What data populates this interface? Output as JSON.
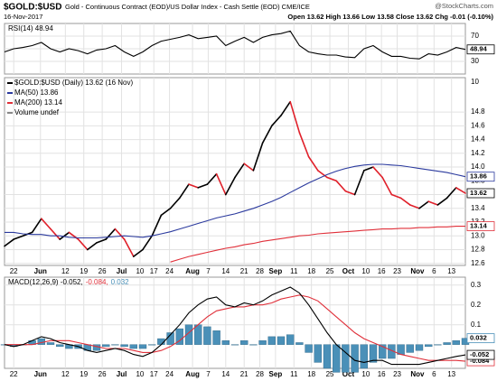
{
  "header": {
    "symbol": "$GOLD:$USD",
    "subtitle": "Gold - Continuous Contract (EOD)/US Dollar Index - Cash Settle (EOD) CME/ICE",
    "brand": "@StockCharts.com",
    "date": "16-Nov-2017",
    "quote": "Open 13.62 High 13.66 Low 13.58 Close 13.62 Chg -0.01 (-0.10%)"
  },
  "chart_data": [
    {
      "type": "line",
      "xlim": [
        0,
        50
      ],
      "ylim": [
        10,
        90
      ],
      "yticks": [
        30,
        50,
        70
      ],
      "grid": true,
      "series": [
        {
          "name": "RSI(14) 48.94",
          "color": "#000000",
          "values": [
            45,
            50,
            52,
            55,
            60,
            50,
            45,
            50,
            47,
            42,
            48,
            50,
            55,
            45,
            38,
            45,
            55,
            62,
            65,
            68,
            72,
            66,
            68,
            70,
            55,
            62,
            68,
            60,
            68,
            72,
            74,
            78,
            55,
            45,
            42,
            40,
            40,
            37,
            36,
            50,
            55,
            45,
            38,
            38,
            35,
            34,
            42,
            40,
            45,
            52,
            48.94
          ]
        }
      ]
    },
    {
      "type": "line",
      "xlim": [
        0,
        50
      ],
      "ylim": [
        12.57,
        15.3
      ],
      "grid": true,
      "volume_axis_label": "10",
      "legend_extra": "Volume undef",
      "yticks": [
        12.6,
        12.8,
        {
          "value": 13,
          "label": "13.0"
        },
        13.2,
        13.4,
        13.6,
        13.8,
        {
          "value": 14,
          "label": "14.0"
        },
        14.2,
        14.4,
        14.6,
        14.8
      ],
      "xticks": [
        {
          "value": 1,
          "label": "22"
        },
        {
          "value": 3.9,
          "label": "Jun"
        },
        {
          "value": 6.6,
          "label": "12"
        },
        {
          "value": 8.6,
          "label": "19"
        },
        {
          "value": 10.6,
          "label": "26"
        },
        {
          "value": 12.7,
          "label": "Jul"
        },
        {
          "value": 14.7,
          "label": "10"
        },
        {
          "value": 16.2,
          "label": "17"
        },
        {
          "value": 17.9,
          "label": "24"
        },
        {
          "value": 20.4,
          "label": "Aug"
        },
        {
          "value": 22.1,
          "label": "7"
        },
        {
          "value": 24,
          "label": "14"
        },
        {
          "value": 26,
          "label": "21"
        },
        {
          "value": 27.7,
          "label": "28"
        },
        {
          "value": 29.4,
          "label": "Sep"
        },
        {
          "value": 31.4,
          "label": "11"
        },
        {
          "value": 33.3,
          "label": "18"
        },
        {
          "value": 35.3,
          "label": "25"
        },
        {
          "value": 37.3,
          "label": "Oct"
        },
        {
          "value": 39.2,
          "label": "10"
        },
        {
          "value": 40.9,
          "label": "16"
        },
        {
          "value": 42.6,
          "label": "23"
        },
        {
          "value": 44.8,
          "label": "Nov"
        },
        {
          "value": 46.6,
          "label": "6"
        },
        {
          "value": 48.5,
          "label": "13"
        }
      ],
      "series": [
        {
          "name": "$GOLD:$USD (Daily) 13.62 (16 Nov)",
          "color": "#000000",
          "down_color": "#e0202a",
          "values": [
            12.85,
            12.95,
            13.0,
            13.05,
            13.25,
            13.1,
            12.95,
            13.05,
            12.95,
            12.8,
            12.9,
            12.95,
            13.1,
            12.95,
            12.7,
            12.8,
            13.0,
            13.3,
            13.4,
            13.55,
            13.75,
            13.7,
            13.75,
            13.9,
            13.6,
            13.85,
            14.05,
            13.95,
            14.35,
            14.6,
            14.75,
            14.95,
            14.5,
            14.15,
            13.95,
            13.85,
            13.8,
            13.65,
            13.6,
            13.95,
            14.0,
            13.85,
            13.6,
            13.55,
            13.45,
            13.4,
            13.5,
            13.45,
            13.55,
            13.7,
            13.62
          ]
        },
        {
          "name": "MA(50) 13.86",
          "color": "#2b3a9e",
          "values": [
            13.05,
            13.05,
            13.03,
            13.02,
            13.02,
            13.0,
            13.0,
            12.98,
            12.97,
            12.97,
            12.97,
            12.98,
            12.99,
            13.0,
            12.99,
            12.98,
            13.0,
            13.03,
            13.06,
            13.1,
            13.14,
            13.18,
            13.22,
            13.26,
            13.29,
            13.32,
            13.36,
            13.4,
            13.45,
            13.5,
            13.56,
            13.63,
            13.7,
            13.77,
            13.83,
            13.89,
            13.94,
            13.98,
            14.01,
            14.03,
            14.04,
            14.04,
            14.03,
            14.02,
            14.0,
            13.98,
            13.96,
            13.94,
            13.92,
            13.89,
            13.86
          ]
        },
        {
          "name": "MA(200) 13.14",
          "color": "#e0303a",
          "values": [
            null,
            null,
            null,
            null,
            null,
            null,
            null,
            null,
            null,
            null,
            null,
            null,
            null,
            null,
            null,
            null,
            null,
            null,
            12.62,
            12.66,
            12.7,
            12.73,
            12.76,
            12.79,
            12.82,
            12.84,
            12.87,
            12.89,
            12.92,
            12.94,
            12.96,
            12.98,
            13.0,
            13.01,
            13.03,
            13.04,
            13.05,
            13.06,
            13.07,
            13.08,
            13.09,
            13.1,
            13.1,
            13.11,
            13.11,
            13.12,
            13.12,
            13.13,
            13.13,
            13.14,
            13.14
          ]
        }
      ]
    },
    {
      "type": "line",
      "xlim": [
        0,
        50
      ],
      "ylim": [
        -0.12,
        0.34
      ],
      "yticks": [
        0.1,
        0.2,
        0.3
      ],
      "grid": true,
      "xticks": [
        {
          "value": 1,
          "label": "22"
        },
        {
          "value": 3.9,
          "label": "Jun"
        },
        {
          "value": 6.6,
          "label": "12"
        },
        {
          "value": 8.6,
          "label": "19"
        },
        {
          "value": 10.6,
          "label": "26"
        },
        {
          "value": 12.7,
          "label": "Jul"
        },
        {
          "value": 14.7,
          "label": "10"
        },
        {
          "value": 16.2,
          "label": "17"
        },
        {
          "value": 17.9,
          "label": "24"
        },
        {
          "value": 20.4,
          "label": "Aug"
        },
        {
          "value": 22.1,
          "label": "7"
        },
        {
          "value": 24,
          "label": "14"
        },
        {
          "value": 26,
          "label": "21"
        },
        {
          "value": 27.7,
          "label": "28"
        },
        {
          "value": 29.4,
          "label": "Sep"
        },
        {
          "value": 31.4,
          "label": "11"
        },
        {
          "value": 33.3,
          "label": "18"
        },
        {
          "value": 35.3,
          "label": "25"
        },
        {
          "value": 37.3,
          "label": "Oct"
        },
        {
          "value": 39.2,
          "label": "10"
        },
        {
          "value": 40.9,
          "label": "16"
        },
        {
          "value": 42.6,
          "label": "23"
        },
        {
          "value": 44.8,
          "label": "Nov"
        },
        {
          "value": 46.6,
          "label": "6"
        },
        {
          "value": 48.5,
          "label": "13"
        }
      ],
      "series": [
        {
          "name": "0.032",
          "color": "#4a90b8",
          "style": "bar",
          "values": [
            0,
            -0.01,
            0,
            0.02,
            0.03,
            0.01,
            -0.01,
            -0.02,
            -0.02,
            -0.03,
            -0.03,
            -0.01,
            0,
            -0.01,
            -0.02,
            -0.02,
            0,
            0.03,
            0.06,
            0.08,
            0.1,
            0.1,
            0.09,
            0.07,
            0.02,
            0,
            0.02,
            0,
            0.02,
            0.04,
            0.04,
            0.05,
            0.01,
            -0.04,
            -0.09,
            -0.12,
            -0.14,
            -0.14,
            -0.14,
            -0.12,
            -0.09,
            -0.07,
            -0.07,
            -0.05,
            -0.04,
            -0.03,
            -0.01,
            0,
            0.01,
            0.02,
            0.032
          ]
        },
        {
          "name": "-0.084,",
          "color": "#e0303a",
          "values": [
            0,
            0,
            0,
            0,
            0.01,
            0.02,
            0.02,
            0.02,
            0.01,
            0,
            -0.01,
            -0.02,
            -0.02,
            -0.02,
            -0.03,
            -0.04,
            -0.04,
            -0.03,
            -0.01,
            0.02,
            0.06,
            0.1,
            0.14,
            0.17,
            0.18,
            0.19,
            0.19,
            0.2,
            0.2,
            0.21,
            0.23,
            0.24,
            0.25,
            0.24,
            0.22,
            0.18,
            0.14,
            0.1,
            0.06,
            0.03,
            0.01,
            -0.01,
            -0.03,
            -0.05,
            -0.06,
            -0.07,
            -0.08,
            -0.08,
            -0.08,
            -0.08,
            -0.084
          ]
        },
        {
          "name": "MACD(12,26,9) -0.052,",
          "color": "#000000",
          "values": [
            0,
            -0.01,
            0,
            0.02,
            0.04,
            0.03,
            0.01,
            0,
            -0.01,
            -0.03,
            -0.04,
            -0.03,
            -0.02,
            -0.03,
            -0.05,
            -0.06,
            -0.04,
            0,
            0.05,
            0.1,
            0.16,
            0.2,
            0.23,
            0.24,
            0.2,
            0.19,
            0.21,
            0.2,
            0.22,
            0.25,
            0.27,
            0.29,
            0.26,
            0.2,
            0.13,
            0.06,
            0,
            -0.04,
            -0.08,
            -0.09,
            -0.08,
            -0.08,
            -0.1,
            -0.1,
            -0.1,
            -0.1,
            -0.09,
            -0.08,
            -0.07,
            -0.06,
            -0.052
          ]
        }
      ]
    }
  ]
}
